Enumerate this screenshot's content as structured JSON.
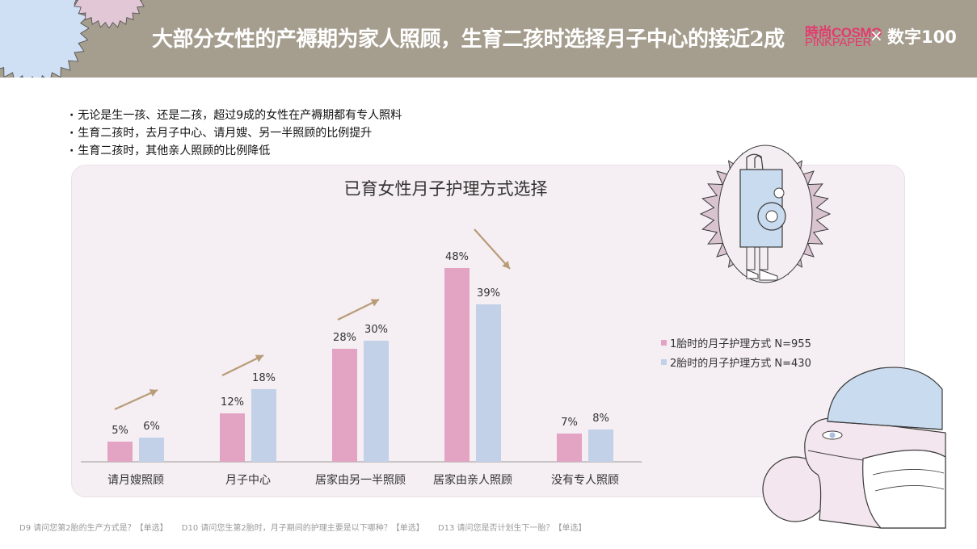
{
  "header": {
    "title": "大部分女性的产褥期为家人照顾，生育二孩时选择月子中心的接近2成",
    "logo_cosmo": "時尚COSMO",
    "logo_pinkpaper": "PINKPAPER",
    "logo_separator": "×",
    "logo_shuzi": "数字100"
  },
  "bullets": [
    "无论是生一孩、还是二孩，超过9成的女性在产褥期都有专人照料",
    "生育二孩时，去月子中心、请月嫂、另一半照顾的比例提升",
    "生育二孩时，其他亲人照顾的比例降低"
  ],
  "chart_data": {
    "type": "bar",
    "title": "已育女性月子护理方式选择",
    "categories": [
      "请月嫂照顾",
      "月子中心",
      "居家由另一半照顾",
      "居家由亲人照顾",
      "没有专人照顾"
    ],
    "series": [
      {
        "name": "1胎时的月子护理方式 N=955",
        "values": [
          5,
          12,
          28,
          48,
          7
        ],
        "color": "#e3a3c2"
      },
      {
        "name": "2胎时的月子护理方式 N=430",
        "values": [
          6,
          18,
          30,
          39,
          8
        ],
        "color": "#c2d1e8"
      }
    ],
    "value_suffix": "%",
    "ylim": [
      0,
      50
    ],
    "legend_position": "right",
    "annotations": [
      "increase-arrow",
      "increase-arrow",
      "increase-arrow",
      "decrease-arrow"
    ]
  },
  "footer": [
    "D9 请问您第2胎的生产方式是？【单选】",
    "D10 请问您生第2胎时，月子期间的护理主要是以下哪种？【单选】",
    "D13 请问您是否计划生下一胎？【单选】"
  ],
  "colors": {
    "header_bg": "#a59d8e",
    "panel_bg": "#f5eef2",
    "series1": "#e3a3c2",
    "series2": "#c2d1e8",
    "arrow": "#b89c78",
    "brand_pink": "#e23b6e"
  }
}
